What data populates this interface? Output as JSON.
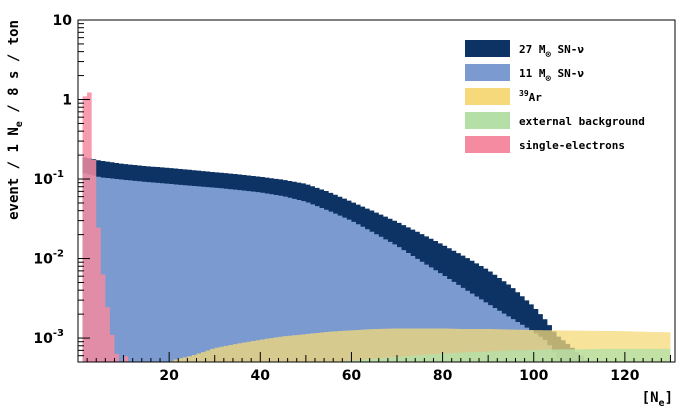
{
  "chart_data": {
    "type": "area",
    "xlabel": "[N",
    "xlabel_sub": "e",
    "xlabel_end": "]",
    "ylabel": "event / 1 N",
    "ylabel_sub": "e",
    "ylabel_end": " / 8 s / ton",
    "log_y": true,
    "xlim": [
      0,
      131
    ],
    "ylim": [
      0.0005,
      10
    ],
    "x_ticks": [
      20,
      40,
      60,
      80,
      100,
      120
    ],
    "y_ticks": [
      {
        "value": 10,
        "label": "10"
      },
      {
        "value": 1,
        "label": "1"
      },
      {
        "value": 0.1,
        "label": "10",
        "exp": "-1"
      },
      {
        "value": 0.01,
        "label": "10",
        "exp": "-2"
      },
      {
        "value": 0.001,
        "label": "10",
        "exp": "-3"
      }
    ],
    "legend_position": "top-right",
    "series": [
      {
        "name_parts": [
          "27 M",
          "⊙",
          " SN-ν"
        ],
        "color": "#0d3364",
        "points": [
          [
            1,
            0.19
          ],
          [
            5,
            0.17
          ],
          [
            10,
            0.155
          ],
          [
            15,
            0.145
          ],
          [
            20,
            0.138
          ],
          [
            25,
            0.13
          ],
          [
            30,
            0.122
          ],
          [
            35,
            0.115
          ],
          [
            40,
            0.107
          ],
          [
            45,
            0.098
          ],
          [
            50,
            0.087
          ],
          [
            55,
            0.069
          ],
          [
            60,
            0.052
          ],
          [
            65,
            0.039
          ],
          [
            70,
            0.029
          ],
          [
            75,
            0.021
          ],
          [
            80,
            0.015
          ],
          [
            85,
            0.0105
          ],
          [
            90,
            0.0072
          ],
          [
            95,
            0.0045
          ],
          [
            100,
            0.0025
          ],
          [
            103,
            0.0016
          ],
          [
            105,
            0.0011
          ],
          [
            108,
            0.0008
          ],
          [
            112,
            0.0005
          ]
        ]
      },
      {
        "name_parts": [
          "11 M",
          "⊙",
          " SN-ν"
        ],
        "color": "#7b9bd0",
        "points": [
          [
            1,
            0.12
          ],
          [
            5,
            0.105
          ],
          [
            10,
            0.098
          ],
          [
            15,
            0.092
          ],
          [
            20,
            0.087
          ],
          [
            25,
            0.082
          ],
          [
            30,
            0.078
          ],
          [
            35,
            0.073
          ],
          [
            40,
            0.068
          ],
          [
            45,
            0.061
          ],
          [
            50,
            0.052
          ],
          [
            55,
            0.04
          ],
          [
            60,
            0.03
          ],
          [
            65,
            0.021
          ],
          [
            70,
            0.0145
          ],
          [
            75,
            0.0095
          ],
          [
            80,
            0.0063
          ],
          [
            85,
            0.0041
          ],
          [
            90,
            0.0027
          ],
          [
            95,
            0.0018
          ],
          [
            100,
            0.0012
          ],
          [
            103,
            0.0009
          ],
          [
            105,
            0.0006
          ],
          [
            106,
            0.0005
          ]
        ]
      },
      {
        "name_parts": [
          "",
          "39",
          "Ar"
        ],
        "color": "#f5d97a",
        "points": [
          [
            20,
            0.0005
          ],
          [
            22,
            0.00055
          ],
          [
            25,
            0.0006
          ],
          [
            28,
            0.00068
          ],
          [
            30,
            0.00075
          ],
          [
            35,
            0.00085
          ],
          [
            40,
            0.00095
          ],
          [
            45,
            0.00105
          ],
          [
            50,
            0.00112
          ],
          [
            55,
            0.0012
          ],
          [
            60,
            0.00125
          ],
          [
            65,
            0.0013
          ],
          [
            70,
            0.00132
          ],
          [
            75,
            0.00132
          ],
          [
            80,
            0.00132
          ],
          [
            85,
            0.0013
          ],
          [
            90,
            0.0013
          ],
          [
            95,
            0.00128
          ],
          [
            100,
            0.00126
          ],
          [
            105,
            0.00125
          ],
          [
            110,
            0.00124
          ],
          [
            115,
            0.00123
          ],
          [
            120,
            0.00122
          ],
          [
            125,
            0.0012
          ],
          [
            130,
            0.00118
          ]
        ]
      },
      {
        "name_parts": [
          "external background",
          "",
          ""
        ],
        "color": "#b4e0a8",
        "points": [
          [
            55,
            0.0005
          ],
          [
            60,
            0.00052
          ],
          [
            65,
            0.00055
          ],
          [
            70,
            0.00058
          ],
          [
            75,
            0.00061
          ],
          [
            80,
            0.00064
          ],
          [
            85,
            0.00066
          ],
          [
            90,
            0.00068
          ],
          [
            95,
            0.0007
          ],
          [
            100,
            0.00071
          ],
          [
            105,
            0.00072
          ],
          [
            110,
            0.00072
          ],
          [
            115,
            0.00073
          ],
          [
            120,
            0.00073
          ],
          [
            125,
            0.00073
          ],
          [
            130,
            0.00073
          ]
        ]
      },
      {
        "name_parts": [
          "single-electrons",
          "",
          ""
        ],
        "color": "#f48ba0",
        "points": [
          [
            1,
            0.4
          ],
          [
            2,
            3.0
          ],
          [
            3,
            0.5
          ],
          [
            4,
            0.06
          ],
          [
            5,
            0.01
          ],
          [
            6,
            0.004
          ],
          [
            7,
            0.0015
          ],
          [
            8,
            0.0008
          ],
          [
            9,
            0.0005
          ],
          [
            10,
            0.0005
          ],
          [
            11,
            0.0007
          ]
        ]
      }
    ]
  }
}
